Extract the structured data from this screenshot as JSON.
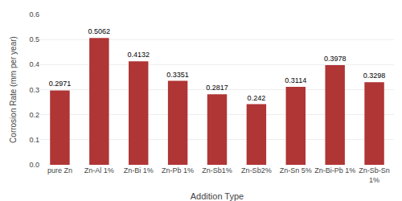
{
  "chart_data": {
    "type": "bar",
    "categories": [
      "pure Zn",
      "Zn-Al 1%",
      "Zn-Bi 1%",
      "Zn-Pb 1%",
      "Zn-Sb1%",
      "Zn-Sb2%",
      "Zn-Sn 5%",
      "Zn-Bi-Pb 1%",
      "Zn-Sb-Sn\n1%"
    ],
    "values": [
      0.2971,
      0.5062,
      0.4132,
      0.3351,
      0.2817,
      0.242,
      0.3114,
      0.3978,
      0.3298
    ],
    "color": "#b03535",
    "xlabel": "Addition Type",
    "ylabel": "Corrosion Rate (mm per year)",
    "ylim": [
      0,
      0.6
    ],
    "yticks": [
      {
        "value": 0,
        "label": "0.0"
      },
      0.1,
      0.2,
      0.3,
      0.4,
      0.5,
      0.6
    ],
    "grid": true,
    "data_labels": true
  }
}
